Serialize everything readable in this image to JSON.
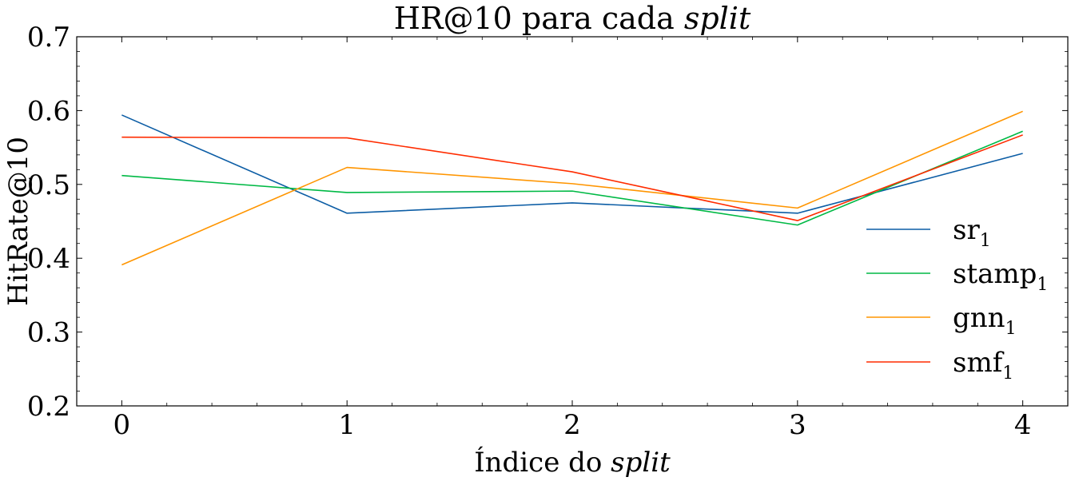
{
  "chart_data": {
    "type": "line",
    "title": "HR@10 para cada",
    "title_italic": "split",
    "xlabel": "Índice do",
    "xlabel_italic": "split",
    "ylabel": "HitRate@10",
    "x": [
      0,
      1,
      2,
      3,
      4
    ],
    "xlim": [
      -0.2,
      4.2
    ],
    "ylim": [
      0.2,
      0.7
    ],
    "yticks": [
      "0.2",
      "0.3",
      "0.4",
      "0.5",
      "0.6",
      "0.7"
    ],
    "xticks": [
      "0",
      "1",
      "2",
      "3",
      "4"
    ],
    "legend_position": "center-right",
    "series": [
      {
        "name": "sr",
        "subscript": "1",
        "color": "#0C5DA5",
        "values": [
          0.594,
          0.461,
          0.475,
          0.461,
          0.542
        ]
      },
      {
        "name": "stamp",
        "subscript": "1",
        "color": "#00B945",
        "values": [
          0.512,
          0.489,
          0.491,
          0.445,
          0.572
        ]
      },
      {
        "name": "gnn",
        "subscript": "1",
        "color": "#FF9500",
        "values": [
          0.391,
          0.523,
          0.501,
          0.468,
          0.599
        ]
      },
      {
        "name": "smf",
        "subscript": "1",
        "color": "#FF2C00",
        "values": [
          0.564,
          0.563,
          0.517,
          0.451,
          0.567
        ]
      }
    ]
  }
}
